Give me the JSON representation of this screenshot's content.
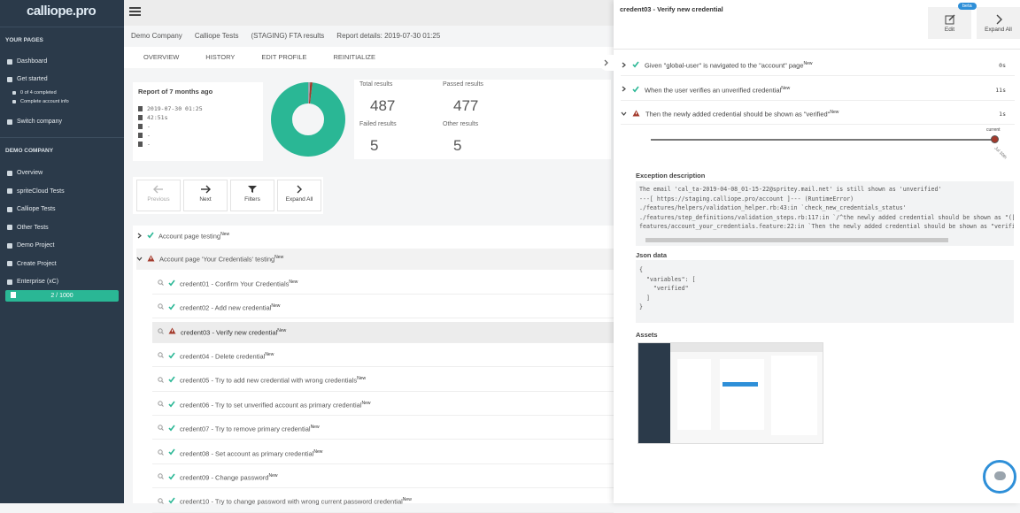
{
  "sidebar": {
    "logo": "calliope.pro",
    "your_pages": {
      "heading": "YOUR PAGES",
      "dashboard": "Dashboard",
      "get_started": "Get started",
      "completed": "0 of 4 completed",
      "account_info": "Complete account info",
      "switch_company": "Switch company"
    },
    "company": {
      "heading": "DEMO COMPANY",
      "items": [
        "Overview",
        "spriteCloud Tests",
        "Calliope Tests",
        "Other Tests",
        "Demo Project",
        "Create Project",
        "Enterprise (xC)"
      ]
    },
    "progress": "2 / 1000"
  },
  "breadcrumb": [
    "Demo Company",
    "Calliope Tests",
    "(STAGING) FTA results",
    "Report details: 2019-07-30 01:25"
  ],
  "tabs": [
    "OVERVIEW",
    "HISTORY",
    "EDIT PROFILE",
    "REINITIALIZE"
  ],
  "report": {
    "title": "Report of 7 months ago",
    "details": [
      "2019-07-30 01:25",
      "42:51s",
      "-",
      "-",
      "-"
    ]
  },
  "stats": {
    "total": {
      "label": "Total results",
      "value": 487
    },
    "passed": {
      "label": "Passed results",
      "value": 477,
      "color": "#2ab795"
    },
    "failed": {
      "label": "Failed results",
      "value": 5,
      "color": "#a33a2c"
    },
    "other": {
      "label": "Other results",
      "value": 5,
      "color": "#9aa4ad"
    }
  },
  "toolbar": [
    "Previous",
    "Next",
    "Filters",
    "Expand All"
  ],
  "tree": {
    "groups": [
      {
        "label": "Account page testing",
        "badge": "New",
        "status": "passed",
        "tests": []
      },
      {
        "label": "Account page 'Your Credentials' testing",
        "badge": "New",
        "status": "failed",
        "tests": [
          {
            "label": "credent01 - Confirm Your Credentials",
            "badge": "New",
            "status": "passed"
          },
          {
            "label": "credent02 - Add new credential",
            "badge": "New",
            "status": "passed"
          },
          {
            "label": "credent03 - Verify new credential",
            "badge": "New",
            "status": "failed"
          },
          {
            "label": "credent04 - Delete credential",
            "badge": "New",
            "status": "passed"
          },
          {
            "label": "credent05 - Try to add new credential with wrong credentials",
            "badge": "New",
            "status": "passed"
          },
          {
            "label": "credent06 - Try to set unverified account as primary credential",
            "badge": "New",
            "status": "passed"
          },
          {
            "label": "credent07 - Try to remove primary credential",
            "badge": "New",
            "status": "passed"
          },
          {
            "label": "credent08 - Set account as primary credential",
            "badge": "New",
            "status": "passed"
          },
          {
            "label": "credent09 - Change password",
            "badge": "New",
            "status": "passed"
          },
          {
            "label": "credent10 - Try to change password with wrong current password credential",
            "badge": "New",
            "status": "passed"
          }
        ]
      }
    ]
  },
  "detail": {
    "title": "credent03 - Verify new credential",
    "edit": "Edit",
    "beta": "beta",
    "expand_all": "Expand All",
    "steps": [
      {
        "label": "Given \"global-user\" is navigated to the \"account\" page",
        "badge": "New",
        "status": "passed",
        "duration": "0s"
      },
      {
        "label": "When the user verifies an unverified credential",
        "badge": "New",
        "status": "passed",
        "duration": "11s"
      },
      {
        "label": "Then the newly added credential should be shown as \"verified\"",
        "badge": "New",
        "status": "failed",
        "duration": "1s"
      }
    ],
    "timeline": {
      "current": "current",
      "date": "Jul 30th"
    },
    "exception_heading": "Exception description",
    "exception": "The email 'cal_ta-2019-04-08_01-15-22@spritey.mail.net' is still shown as 'unverified'\n---[ https://staging.calliope.pro/account ]--- (RuntimeError)\n./features/helpers/validation_helper.rb:43:in `check_new_credentials_status'\n./features/step_definitions/validation_steps.rb:117:in `/^the newly added credential should be shown as \"([^\"]*)\"$/'\nfeatures/account_your_credentials.feature:22:in `Then the newly added credential should be shown as \"verified\"'",
    "json_heading": "Json data",
    "json": "{\n  \"variables\": [\n    \"verified\"\n  ]\n}",
    "assets_heading": "Assets"
  }
}
